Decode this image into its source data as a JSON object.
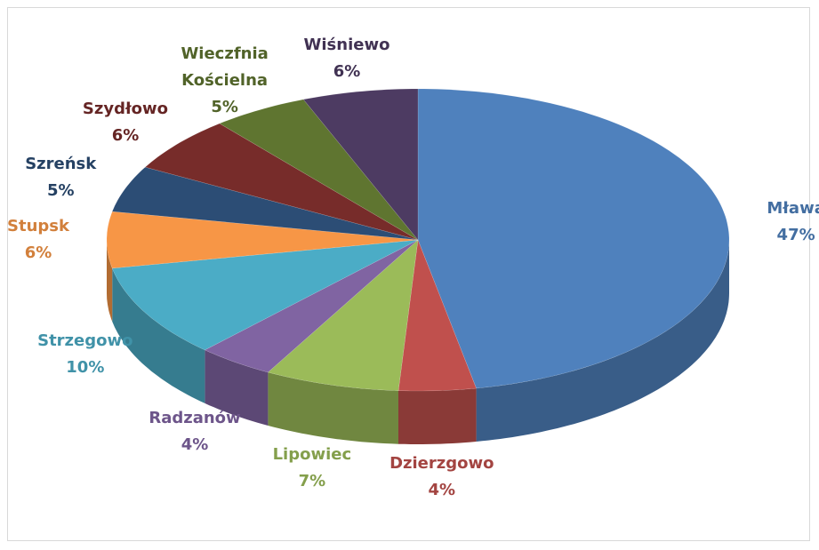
{
  "chart_data": {
    "type": "pie",
    "categories": [
      "Mława",
      "Dzierzgowo",
      "Lipowiec",
      "Radzanów",
      "Strzegowo",
      "Stupsk",
      "Szreńsk",
      "Szydłowo",
      "Wieczfnia Kościelna",
      "Wiśniewo"
    ],
    "values": [
      47,
      4,
      7,
      4,
      10,
      6,
      5,
      6,
      5,
      6
    ],
    "value_labels": [
      "47%",
      "4%",
      "7%",
      "4%",
      "10%",
      "6%",
      "5%",
      "6%",
      "5%",
      "6%"
    ],
    "colors": [
      "#4f81bd",
      "#c0504d",
      "#9bbb59",
      "#8064a2",
      "#4bacc6",
      "#f79646",
      "#2c4d75",
      "#772c2a",
      "#5f7530",
      "#4d3b62"
    ]
  }
}
